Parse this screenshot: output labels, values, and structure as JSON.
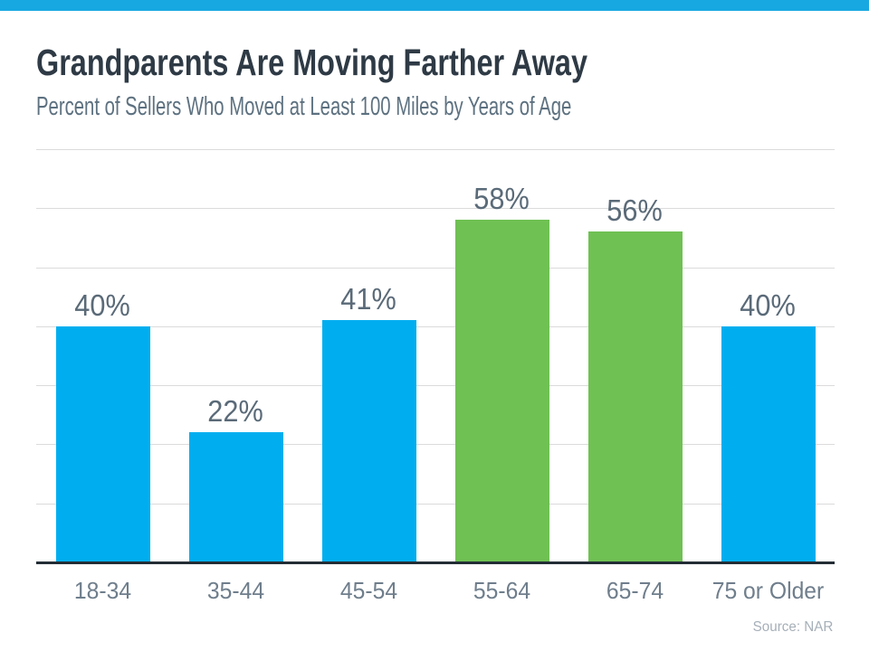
{
  "page": {
    "title": "Grandparents Are Moving Farther Away",
    "subtitle": "Percent of Sellers Who Moved at Least 100 Miles by Years of Age",
    "source": "Source: NAR"
  },
  "colors": {
    "top_strip": "#17A8E1",
    "bar_blue": "#00AEEF",
    "bar_green": "#6FC153",
    "title": "#2E3A45",
    "subtitle": "#5D7180",
    "value_label": "#5A6A78",
    "category_label": "#6F7E8C",
    "gridline": "#DBDBDB",
    "axis": "#232D35",
    "source": "#A6AFB8"
  },
  "chart_data": {
    "type": "bar",
    "title": "Grandparents Are Moving Farther Away",
    "subtitle": "Percent of Sellers Who Moved at Least 100 Miles by Years of Age",
    "categories": [
      "18-34",
      "35-44",
      "45-54",
      "55-64",
      "65-74",
      "75 or Older"
    ],
    "values": [
      40,
      22,
      41,
      58,
      56,
      40
    ],
    "value_labels": [
      "40%",
      "22%",
      "41%",
      "58%",
      "56%",
      "40%"
    ],
    "bar_colors": [
      "#00AEEF",
      "#00AEEF",
      "#00AEEF",
      "#6FC153",
      "#6FC153",
      "#00AEEF"
    ],
    "xlabel": "",
    "ylabel": "",
    "ylim": [
      0,
      70
    ],
    "grid": true,
    "grid_step": 10,
    "grid_axis": "y",
    "legend": false,
    "data_labels_position": "above-bar",
    "source": "Source: NAR"
  }
}
